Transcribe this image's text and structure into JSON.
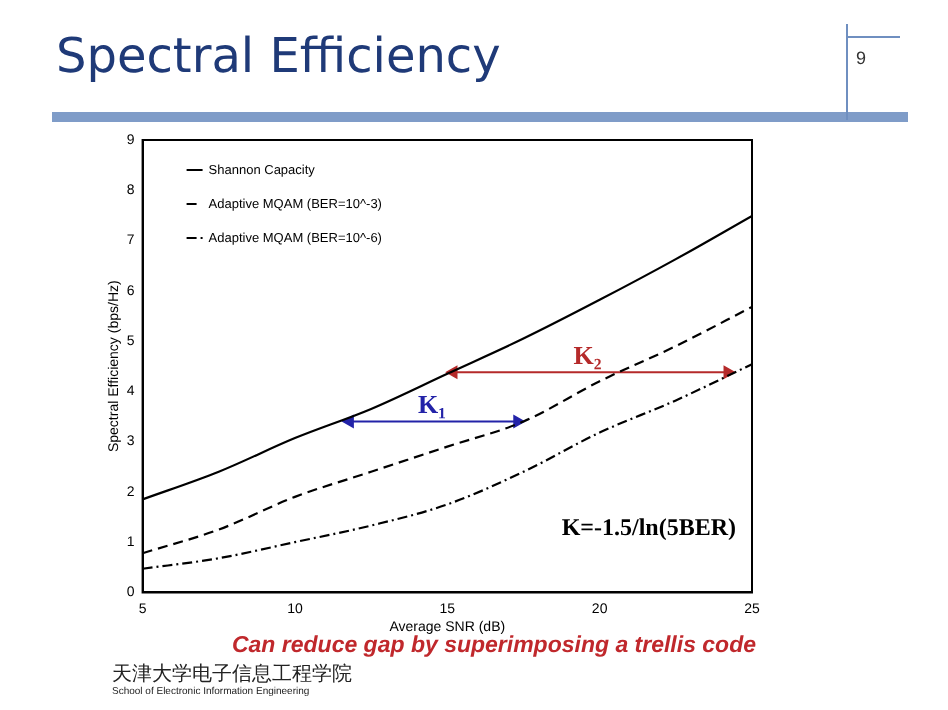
{
  "chart_data": {
    "type": "line",
    "title": "Spectral Efficiency",
    "xlabel": "Average SNR (dB)",
    "ylabel": "Spectral Efficiency (bps/Hz)",
    "x": [
      5,
      7.5,
      10,
      12.5,
      15,
      17.5,
      20,
      22.5,
      25
    ],
    "series": [
      {
        "name": "Shannon Capacity",
        "color": "#000000",
        "line_style": "solid",
        "values": [
          1.85,
          2.4,
          3.07,
          3.65,
          4.35,
          5.05,
          5.82,
          6.63,
          7.49
        ]
      },
      {
        "name": "Adaptive MQAM (BER=10^-3)",
        "color": "#000000",
        "line_style": "dashed",
        "values": [
          0.78,
          1.25,
          1.9,
          2.4,
          2.9,
          3.4,
          4.2,
          4.9,
          5.68
        ]
      },
      {
        "name": "Adaptive MQAM (BER=10^-6)",
        "color": "#000000",
        "line_style": "dotted",
        "values": [
          0.47,
          0.68,
          1.0,
          1.33,
          1.75,
          2.4,
          3.18,
          3.82,
          4.54
        ]
      },
      {
        "color": "#2323a8",
        "marker": "triangle",
        "line_style": "solid",
        "x": [
          11.8,
          17.3
        ],
        "values": [
          3.4,
          3.4
        ]
      },
      {
        "color": "#b52a2a",
        "marker": "triangle",
        "line_style": "solid",
        "x": [
          15.2,
          24.2
        ],
        "values": [
          4.38,
          4.38
        ]
      }
    ],
    "annotations": [
      {
        "text": "K₁",
        "x": 14.5,
        "y": 3.4
      },
      {
        "text": "K₂",
        "x": 19.6,
        "y": 4.38
      },
      "K=-1.5/ln(5BER)",
      "Can reduce gap by superimposing a trellis code",
      "9",
      "天津大学电子信息工程学院",
      "School of Electronic Information Engineering"
    ],
    "xlim": [
      5,
      25
    ],
    "xticks": [
      5,
      10,
      15,
      20,
      25
    ],
    "ylim": [
      0,
      9
    ],
    "yticks": [
      0,
      1,
      2,
      3,
      4,
      5,
      6,
      7,
      8,
      9
    ],
    "grid": false,
    "legend": "top left",
    "marker": "none"
  }
}
